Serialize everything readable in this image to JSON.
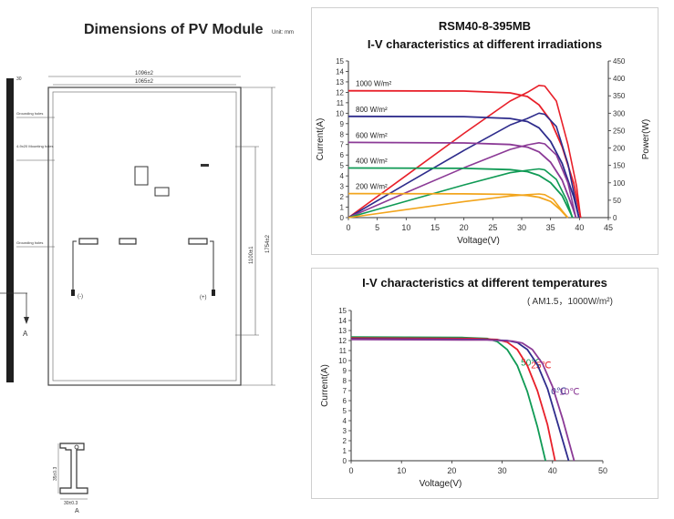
{
  "drawing": {
    "title": "Dimensions of PV Module",
    "unit": "Unit: mm",
    "labels": {
      "frame_width": "1096±2",
      "inner_width": "1065±2",
      "side_thickness": "30",
      "grounding_top": "Grounding holes",
      "mounting_holes": "4-9x20 Mounting holes",
      "grounding_mid": "Grounding holes",
      "hole_spacing": "1100±1",
      "length": "1754±2",
      "plus": "(+)",
      "minus": "(-)",
      "section_mark": "A",
      "profile_height": "35±0.3",
      "profile_width": "30±0.3",
      "profile_label": "A"
    }
  },
  "chart_data": [
    {
      "type": "line",
      "title": "RSM40-8-395MB",
      "subtitle": "I-V characteristics at different irradiations",
      "xlabel": "Voltage(V)",
      "ylabel": "Current(A)",
      "y2label": "Power(W)",
      "xlim": [
        0,
        45
      ],
      "ylim": [
        0,
        15
      ],
      "y2lim": [
        0,
        450
      ],
      "xticks": [
        0,
        5,
        10,
        15,
        20,
        25,
        30,
        35,
        40,
        45
      ],
      "yticks": [
        0,
        1,
        2,
        3,
        4,
        5,
        6,
        7,
        8,
        9,
        10,
        11,
        12,
        13,
        14,
        15
      ],
      "y2ticks": [
        0,
        50,
        100,
        150,
        200,
        250,
        300,
        350,
        400,
        450
      ],
      "grid": false,
      "series": [
        {
          "name": "1000 W/m²",
          "color": "#e8202a",
          "iv": [
            [
              0,
              12.15
            ],
            [
              20,
              12.12
            ],
            [
              28,
              11.95
            ],
            [
              31,
              11.6
            ],
            [
              33,
              10.8
            ],
            [
              35,
              9.3
            ],
            [
              37,
              6.8
            ],
            [
              39,
              3.3
            ],
            [
              40.2,
              0
            ]
          ],
          "pv": [
            [
              0,
              0
            ],
            [
              10,
              121
            ],
            [
              20,
              242
            ],
            [
              28,
              335
            ],
            [
              31,
              360
            ],
            [
              33,
              380
            ],
            [
              34,
              378
            ],
            [
              36,
              335
            ],
            [
              38,
              210
            ],
            [
              39.5,
              90
            ],
            [
              40.2,
              0
            ]
          ]
        },
        {
          "name": "800 W/m²",
          "color": "#2e2c8c",
          "iv": [
            [
              0,
              9.7
            ],
            [
              20,
              9.67
            ],
            [
              28,
              9.5
            ],
            [
              31,
              9.2
            ],
            [
              33,
              8.6
            ],
            [
              35,
              7.3
            ],
            [
              37,
              5.2
            ],
            [
              39,
              2.0
            ],
            [
              39.9,
              0
            ]
          ],
          "pv": [
            [
              0,
              0
            ],
            [
              10,
              97
            ],
            [
              20,
              193
            ],
            [
              28,
              266
            ],
            [
              31,
              285
            ],
            [
              33,
              300
            ],
            [
              34,
              297
            ],
            [
              36,
              262
            ],
            [
              38,
              155
            ],
            [
              39.9,
              0
            ]
          ]
        },
        {
          "name": "600 W/m²",
          "color": "#8b3a96",
          "iv": [
            [
              0,
              7.2
            ],
            [
              20,
              7.15
            ],
            [
              28,
              7.0
            ],
            [
              31,
              6.75
            ],
            [
              33,
              6.3
            ],
            [
              35,
              5.3
            ],
            [
              37,
              3.6
            ],
            [
              38.8,
              1.0
            ],
            [
              39.4,
              0
            ]
          ],
          "pv": [
            [
              0,
              0
            ],
            [
              10,
              72
            ],
            [
              20,
              143
            ],
            [
              28,
              196
            ],
            [
              31,
              209
            ],
            [
              33,
              215
            ],
            [
              34,
              212
            ],
            [
              36,
              180
            ],
            [
              38,
              100
            ],
            [
              39.4,
              0
            ]
          ]
        },
        {
          "name": "400 W/m²",
          "color": "#109a55",
          "iv": [
            [
              0,
              4.75
            ],
            [
              20,
              4.72
            ],
            [
              28,
              4.6
            ],
            [
              31,
              4.4
            ],
            [
              33,
              4.05
            ],
            [
              35,
              3.35
            ],
            [
              37,
              2.1
            ],
            [
              38.4,
              0.5
            ],
            [
              38.8,
              0
            ]
          ],
          "pv": [
            [
              0,
              0
            ],
            [
              10,
              47
            ],
            [
              20,
              94
            ],
            [
              28,
              129
            ],
            [
              31,
              136
            ],
            [
              33,
              140
            ],
            [
              34,
              137
            ],
            [
              36,
              110
            ],
            [
              37.8,
              50
            ],
            [
              38.8,
              0
            ]
          ]
        },
        {
          "name": "200 W/m²",
          "color": "#f2a51d",
          "iv": [
            [
              0,
              2.3
            ],
            [
              20,
              2.28
            ],
            [
              28,
              2.22
            ],
            [
              31,
              2.12
            ],
            [
              33,
              1.95
            ],
            [
              35,
              1.55
            ],
            [
              36.6,
              0.8
            ],
            [
              37.6,
              0.2
            ],
            [
              38.0,
              0
            ]
          ],
          "pv": [
            [
              0,
              0
            ],
            [
              10,
              23
            ],
            [
              20,
              46
            ],
            [
              28,
              62
            ],
            [
              31,
              66
            ],
            [
              33,
              68
            ],
            [
              34,
              66
            ],
            [
              35.5,
              52
            ],
            [
              37,
              20
            ],
            [
              38.0,
              0
            ]
          ]
        }
      ]
    },
    {
      "type": "line",
      "title": "I-V characteristics at different temperatures",
      "condition": "( AM1.5，1000W/m²)",
      "xlabel": "Voltage(V)",
      "ylabel": "Current(A)",
      "xlim": [
        0,
        50
      ],
      "ylim": [
        0,
        15
      ],
      "xticks": [
        0,
        10,
        20,
        30,
        40,
        50
      ],
      "yticks": [
        0,
        1,
        2,
        3,
        4,
        5,
        6,
        7,
        8,
        9,
        10,
        11,
        12,
        13,
        14,
        15
      ],
      "grid": false,
      "series": [
        {
          "name": "50℃",
          "color": "#109a55",
          "iv": [
            [
              0,
              12.35
            ],
            [
              22,
              12.3
            ],
            [
              27,
              12.2
            ],
            [
              29,
              11.9
            ],
            [
              31,
              11.1
            ],
            [
              33,
              9.5
            ],
            [
              35,
              6.9
            ],
            [
              37,
              3.4
            ],
            [
              38.6,
              0
            ]
          ]
        },
        {
          "name": "25℃",
          "color": "#e8202a",
          "iv": [
            [
              0,
              12.25
            ],
            [
              24,
              12.2
            ],
            [
              29,
              12.1
            ],
            [
              31,
              11.85
            ],
            [
              33,
              11.1
            ],
            [
              35,
              9.5
            ],
            [
              37,
              7.0
            ],
            [
              39,
              3.6
            ],
            [
              40.5,
              0
            ]
          ]
        },
        {
          "name": "0℃",
          "color": "#2e2c8c",
          "iv": [
            [
              0,
              12.15
            ],
            [
              26,
              12.1
            ],
            [
              31,
              12.0
            ],
            [
              33,
              11.8
            ],
            [
              35,
              11.1
            ],
            [
              37,
              9.6
            ],
            [
              39,
              7.2
            ],
            [
              41,
              3.8
            ],
            [
              43.2,
              0
            ]
          ]
        },
        {
          "name": "-10℃",
          "color": "#8b3a96",
          "iv": [
            [
              0,
              12.1
            ],
            [
              27,
              12.05
            ],
            [
              32,
              11.95
            ],
            [
              34,
              11.75
            ],
            [
              36,
              11.1
            ],
            [
              38,
              9.7
            ],
            [
              40,
              7.4
            ],
            [
              42,
              4.2
            ],
            [
              44.3,
              0
            ]
          ]
        }
      ]
    }
  ]
}
